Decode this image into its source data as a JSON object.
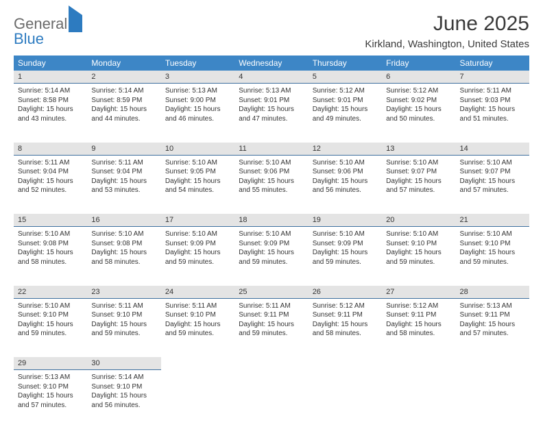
{
  "logo": {
    "part1": "General",
    "part2": "Blue"
  },
  "title": "June 2025",
  "location": "Kirkland, Washington, United States",
  "colors": {
    "header_bg": "#3d86c6",
    "header_text": "#ffffff",
    "daynum_bg": "#e4e4e4",
    "daynum_border": "#3d6f9e",
    "body_text": "#333333",
    "logo_gray": "#6a6a6a",
    "logo_blue": "#2d7bc0"
  },
  "fonts": {
    "title_size": 30,
    "location_size": 15,
    "dayheader_size": 12,
    "daynum_size": 11,
    "cell_size": 10
  },
  "day_headers": [
    "Sunday",
    "Monday",
    "Tuesday",
    "Wednesday",
    "Thursday",
    "Friday",
    "Saturday"
  ],
  "weeks": [
    [
      {
        "n": "1",
        "sr": "5:14 AM",
        "ss": "8:58 PM",
        "dl": "15 hours",
        "dm": "and 43 minutes."
      },
      {
        "n": "2",
        "sr": "5:14 AM",
        "ss": "8:59 PM",
        "dl": "15 hours",
        "dm": "and 44 minutes."
      },
      {
        "n": "3",
        "sr": "5:13 AM",
        "ss": "9:00 PM",
        "dl": "15 hours",
        "dm": "and 46 minutes."
      },
      {
        "n": "4",
        "sr": "5:13 AM",
        "ss": "9:01 PM",
        "dl": "15 hours",
        "dm": "and 47 minutes."
      },
      {
        "n": "5",
        "sr": "5:12 AM",
        "ss": "9:01 PM",
        "dl": "15 hours",
        "dm": "and 49 minutes."
      },
      {
        "n": "6",
        "sr": "5:12 AM",
        "ss": "9:02 PM",
        "dl": "15 hours",
        "dm": "and 50 minutes."
      },
      {
        "n": "7",
        "sr": "5:11 AM",
        "ss": "9:03 PM",
        "dl": "15 hours",
        "dm": "and 51 minutes."
      }
    ],
    [
      {
        "n": "8",
        "sr": "5:11 AM",
        "ss": "9:04 PM",
        "dl": "15 hours",
        "dm": "and 52 minutes."
      },
      {
        "n": "9",
        "sr": "5:11 AM",
        "ss": "9:04 PM",
        "dl": "15 hours",
        "dm": "and 53 minutes."
      },
      {
        "n": "10",
        "sr": "5:10 AM",
        "ss": "9:05 PM",
        "dl": "15 hours",
        "dm": "and 54 minutes."
      },
      {
        "n": "11",
        "sr": "5:10 AM",
        "ss": "9:06 PM",
        "dl": "15 hours",
        "dm": "and 55 minutes."
      },
      {
        "n": "12",
        "sr": "5:10 AM",
        "ss": "9:06 PM",
        "dl": "15 hours",
        "dm": "and 56 minutes."
      },
      {
        "n": "13",
        "sr": "5:10 AM",
        "ss": "9:07 PM",
        "dl": "15 hours",
        "dm": "and 57 minutes."
      },
      {
        "n": "14",
        "sr": "5:10 AM",
        "ss": "9:07 PM",
        "dl": "15 hours",
        "dm": "and 57 minutes."
      }
    ],
    [
      {
        "n": "15",
        "sr": "5:10 AM",
        "ss": "9:08 PM",
        "dl": "15 hours",
        "dm": "and 58 minutes."
      },
      {
        "n": "16",
        "sr": "5:10 AM",
        "ss": "9:08 PM",
        "dl": "15 hours",
        "dm": "and 58 minutes."
      },
      {
        "n": "17",
        "sr": "5:10 AM",
        "ss": "9:09 PM",
        "dl": "15 hours",
        "dm": "and 59 minutes."
      },
      {
        "n": "18",
        "sr": "5:10 AM",
        "ss": "9:09 PM",
        "dl": "15 hours",
        "dm": "and 59 minutes."
      },
      {
        "n": "19",
        "sr": "5:10 AM",
        "ss": "9:09 PM",
        "dl": "15 hours",
        "dm": "and 59 minutes."
      },
      {
        "n": "20",
        "sr": "5:10 AM",
        "ss": "9:10 PM",
        "dl": "15 hours",
        "dm": "and 59 minutes."
      },
      {
        "n": "21",
        "sr": "5:10 AM",
        "ss": "9:10 PM",
        "dl": "15 hours",
        "dm": "and 59 minutes."
      }
    ],
    [
      {
        "n": "22",
        "sr": "5:10 AM",
        "ss": "9:10 PM",
        "dl": "15 hours",
        "dm": "and 59 minutes."
      },
      {
        "n": "23",
        "sr": "5:11 AM",
        "ss": "9:10 PM",
        "dl": "15 hours",
        "dm": "and 59 minutes."
      },
      {
        "n": "24",
        "sr": "5:11 AM",
        "ss": "9:10 PM",
        "dl": "15 hours",
        "dm": "and 59 minutes."
      },
      {
        "n": "25",
        "sr": "5:11 AM",
        "ss": "9:11 PM",
        "dl": "15 hours",
        "dm": "and 59 minutes."
      },
      {
        "n": "26",
        "sr": "5:12 AM",
        "ss": "9:11 PM",
        "dl": "15 hours",
        "dm": "and 58 minutes."
      },
      {
        "n": "27",
        "sr": "5:12 AM",
        "ss": "9:11 PM",
        "dl": "15 hours",
        "dm": "and 58 minutes."
      },
      {
        "n": "28",
        "sr": "5:13 AM",
        "ss": "9:11 PM",
        "dl": "15 hours",
        "dm": "and 57 minutes."
      }
    ],
    [
      {
        "n": "29",
        "sr": "5:13 AM",
        "ss": "9:10 PM",
        "dl": "15 hours",
        "dm": "and 57 minutes."
      },
      {
        "n": "30",
        "sr": "5:14 AM",
        "ss": "9:10 PM",
        "dl": "15 hours",
        "dm": "and 56 minutes."
      },
      null,
      null,
      null,
      null,
      null
    ]
  ],
  "labels": {
    "sunrise": "Sunrise: ",
    "sunset": "Sunset: ",
    "daylight": "Daylight: "
  }
}
